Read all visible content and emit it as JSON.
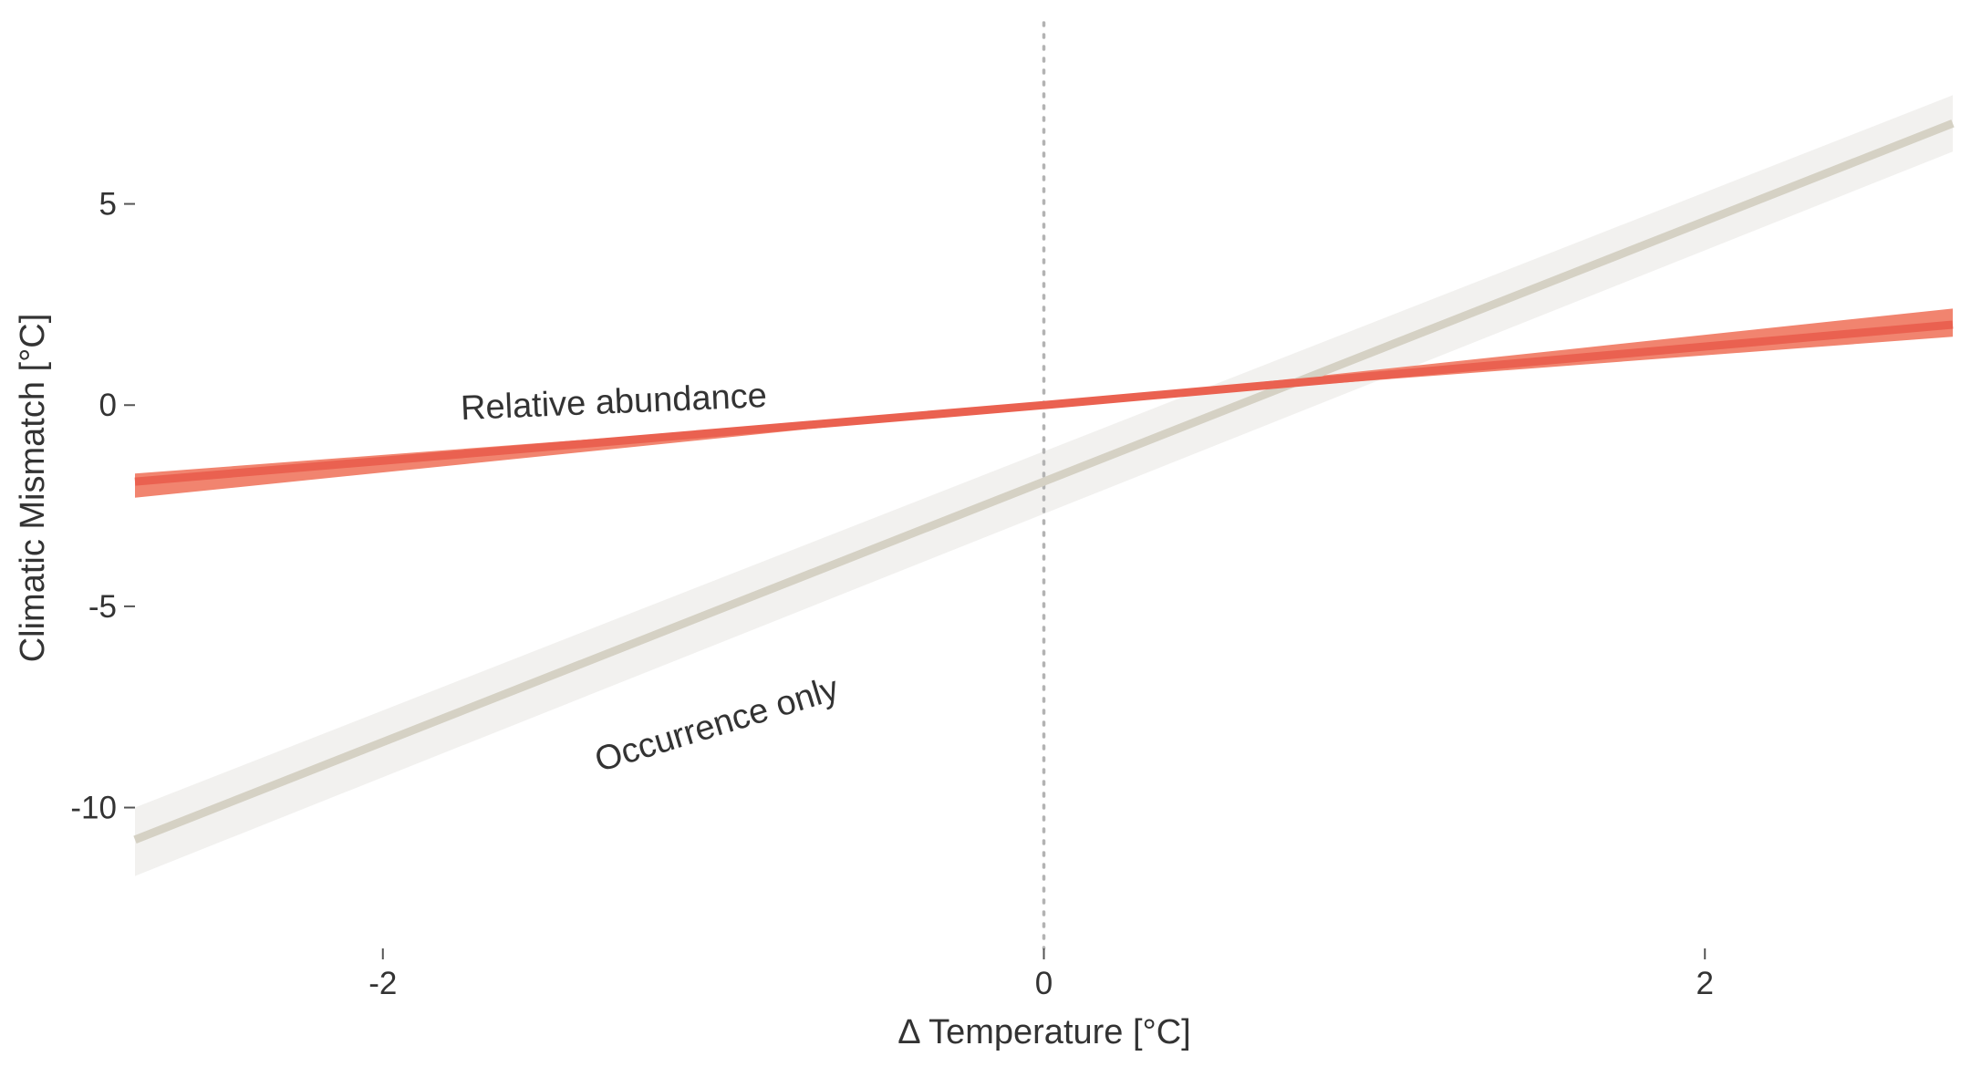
{
  "chart_data": {
    "type": "line",
    "xlabel": "Δ  Temperature [°C]",
    "ylabel": "Climatic Mismatch [°C]",
    "xlim": [
      -2.75,
      2.75
    ],
    "ylim": [
      -13.5,
      9.5
    ],
    "x_ticks": [
      -2,
      0,
      2
    ],
    "x_tick_labels": [
      "-2",
      "0",
      "2"
    ],
    "y_ticks": [
      -10,
      -5,
      0,
      5
    ],
    "y_tick_labels": [
      "-10",
      "-5",
      "0",
      "5"
    ],
    "grid": false,
    "reference_line": {
      "axis": "x",
      "value": 0,
      "style": "dotted"
    },
    "series": [
      {
        "name": "Occurrence only",
        "color": "#d5d1c4",
        "band_color": "#f2f1ef",
        "x": [
          -2.75,
          2.75
        ],
        "y": [
          -10.8,
          7.0
        ],
        "ci_low": [
          -11.7,
          6.3
        ],
        "ci_high": [
          -10.0,
          7.7
        ]
      },
      {
        "name": "Relative abundance",
        "color": "#ea6150",
        "band_color": "#f1846f",
        "x": [
          -2.75,
          0,
          2.75
        ],
        "y": [
          -1.9,
          0.0,
          2.0
        ],
        "ci_low": [
          -2.3,
          0.0,
          1.7
        ],
        "ci_high": [
          -1.7,
          0.0,
          2.4
        ]
      }
    ],
    "annotations": [
      {
        "text": "Relative abundance",
        "x": -1.3,
        "y": -0.2,
        "angle_deg": -2.4
      },
      {
        "text": "Occurrence only",
        "x": -0.98,
        "y": -8.2,
        "angle_deg": -17
      }
    ]
  }
}
